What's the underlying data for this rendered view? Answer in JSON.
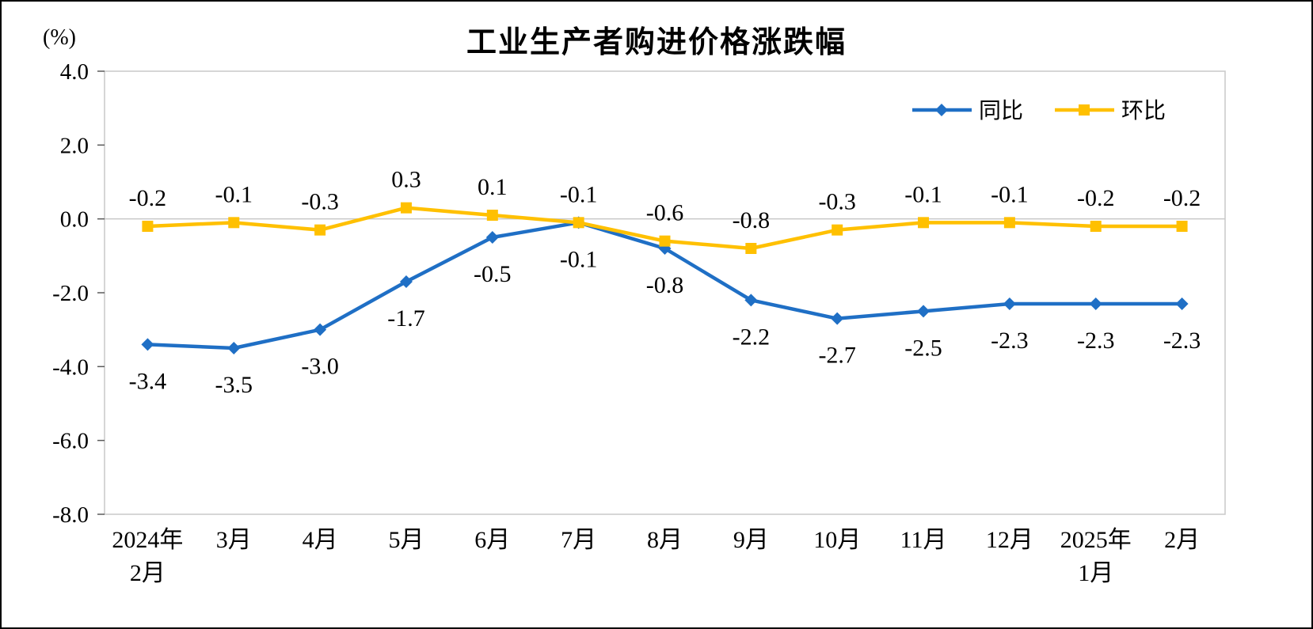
{
  "chart_data": {
    "type": "line",
    "title": "工业生产者购进价格涨跌幅",
    "unit_label": "(%)",
    "categories": [
      "2024年\n2月",
      "3月",
      "4月",
      "5月",
      "6月",
      "7月",
      "8月",
      "9月",
      "10月",
      "11月",
      "12月",
      "2025年\n1月",
      "2月"
    ],
    "series": [
      {
        "name": "同比",
        "color": "#1F6FC5",
        "marker": "diamond",
        "label_position": "below",
        "values": [
          -3.4,
          -3.5,
          -3.0,
          -1.7,
          -0.5,
          -0.1,
          -0.8,
          -2.2,
          -2.7,
          -2.5,
          -2.3,
          -2.3,
          -2.3
        ]
      },
      {
        "name": "环比",
        "color": "#FFC000",
        "marker": "square",
        "label_position": "above",
        "values": [
          -0.2,
          -0.1,
          -0.3,
          0.3,
          0.1,
          -0.1,
          -0.6,
          -0.8,
          -0.3,
          -0.1,
          -0.1,
          -0.2,
          -0.2
        ]
      }
    ],
    "ylim": [
      -8.0,
      4.0
    ],
    "ytick_step": 2,
    "grid": false,
    "legend_position": "top-right",
    "axis_color": "#c8c8c8"
  }
}
